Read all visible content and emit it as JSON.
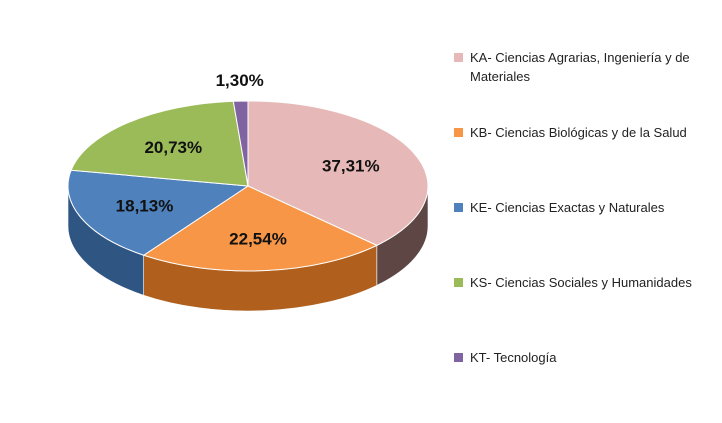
{
  "chart_data": {
    "type": "pie",
    "style": "3d",
    "title": "",
    "legend_position": "right",
    "series": [
      {
        "values": [
          37.31,
          22.54,
          18.13,
          20.73,
          1.3
        ]
      }
    ],
    "slices": [
      {
        "label": "KA- Ciencias Agrarias, Ingeniería y de Materiales",
        "value": 37.31,
        "display": "37,31%",
        "color": "#e6b9b8",
        "side": "#5e4645"
      },
      {
        "label": "KB-  Ciencias Biológicas y de la Salud",
        "value": 22.54,
        "display": "22,54%",
        "color": "#f79646",
        "side": "#b0601c"
      },
      {
        "label": "KE- Ciencias Exactas y Naturales",
        "value": 18.13,
        "display": "18,13%",
        "color": "#4f81bd",
        "side": "#2f5582"
      },
      {
        "label": "KS- Ciencias Sociales y Humanidades",
        "value": 20.73,
        "display": "20,73%",
        "color": "#9bbb59",
        "side": "#6a8a33"
      },
      {
        "label": "KT- Tecnología",
        "value": 1.3,
        "display": "1,30%",
        "color": "#8064a2",
        "side": "#55406e"
      }
    ]
  }
}
